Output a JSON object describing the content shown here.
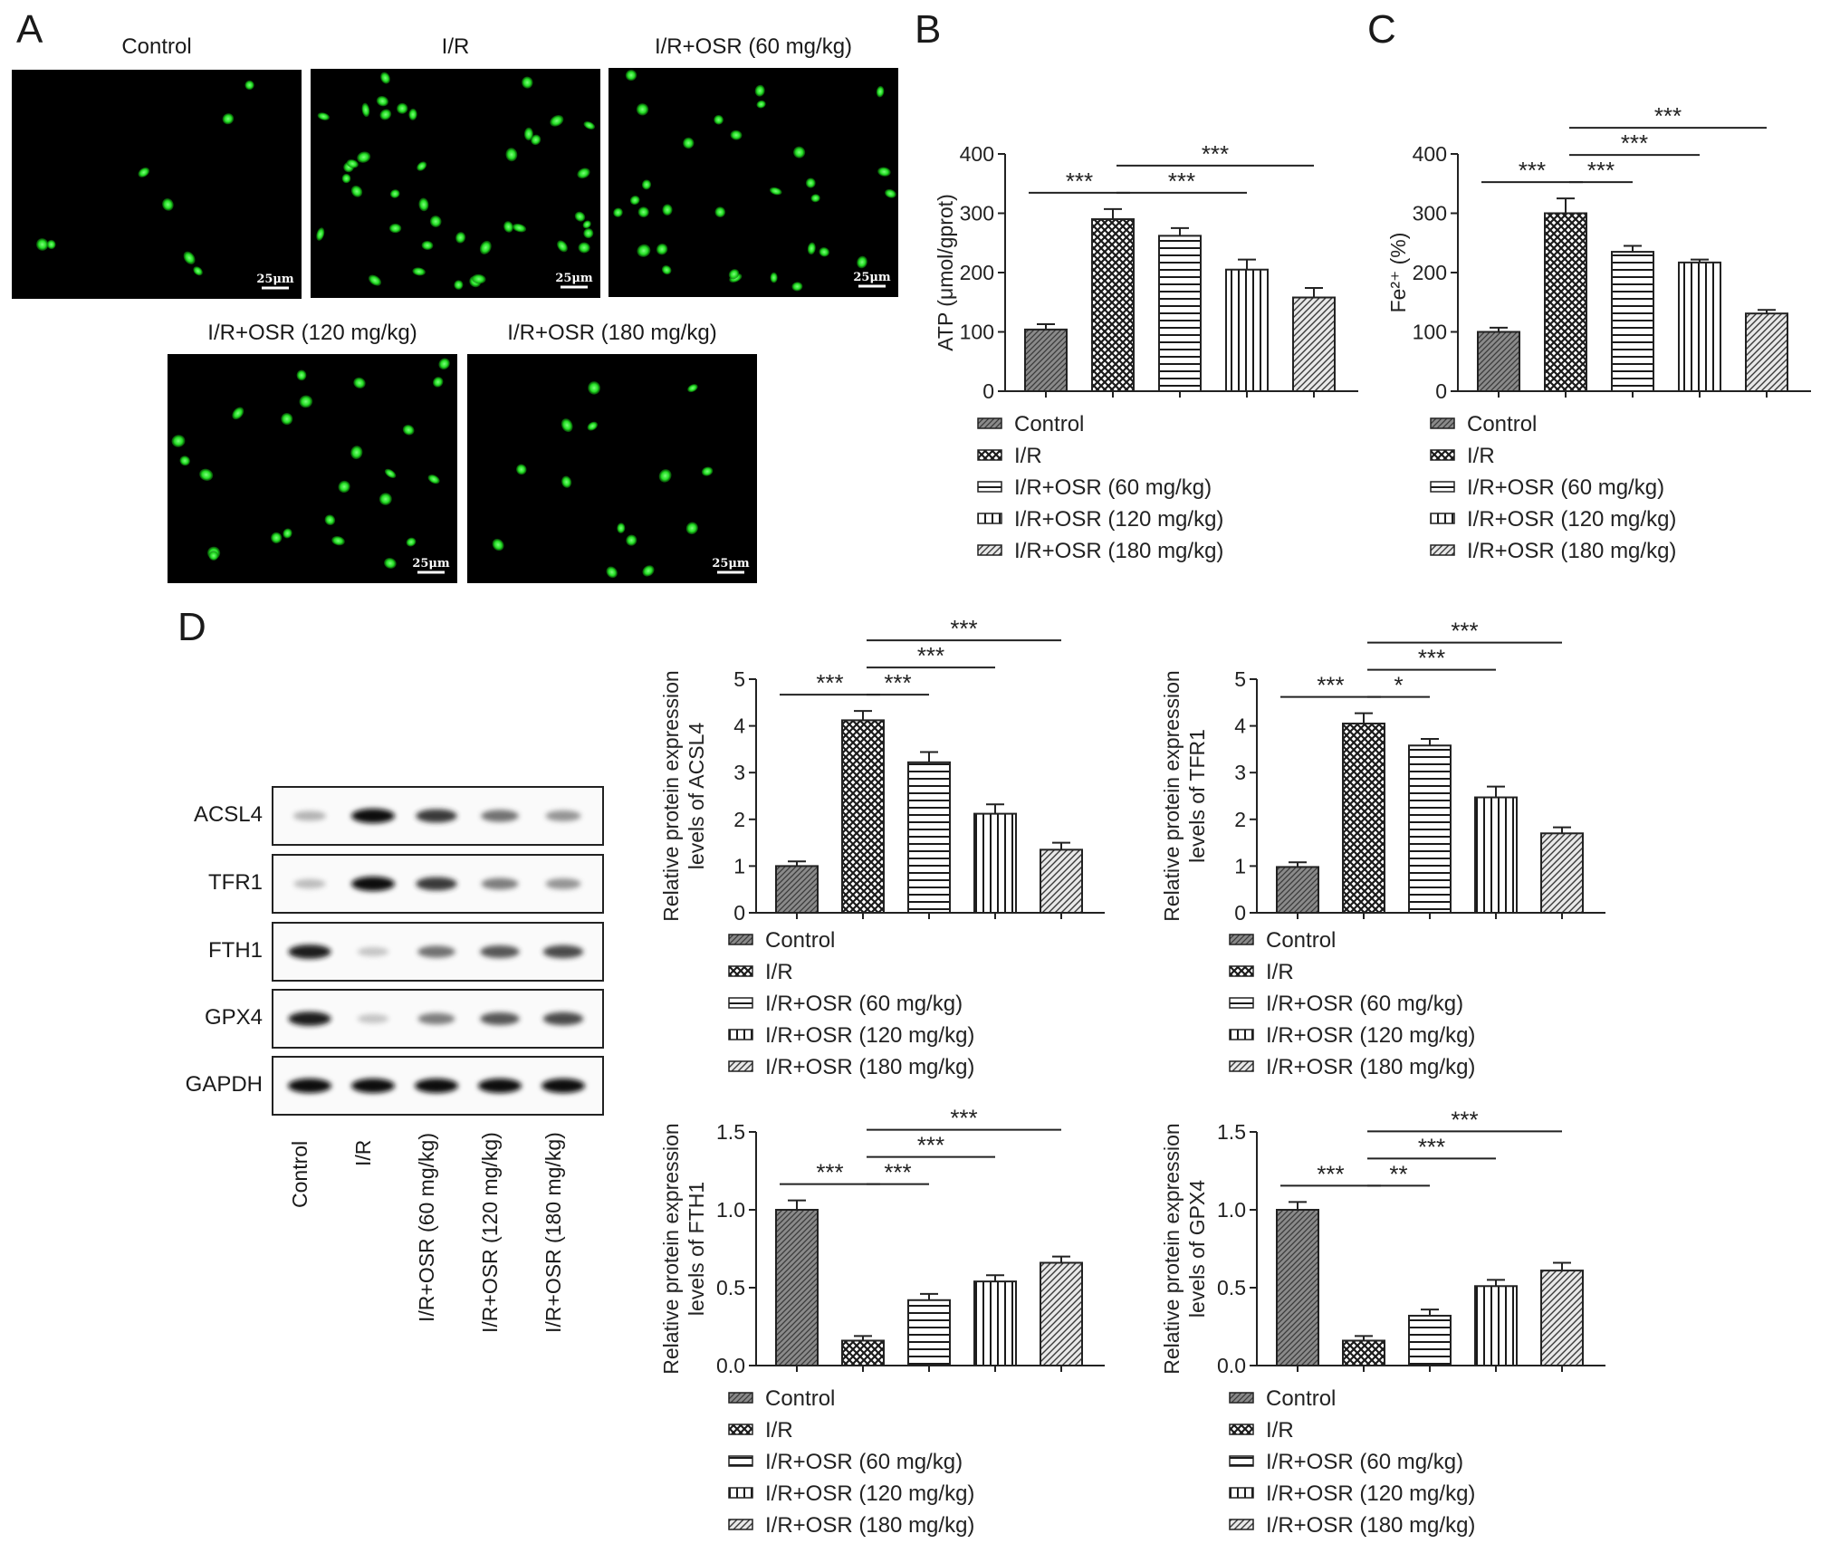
{
  "panel_labels": [
    "A",
    "B",
    "C",
    "D"
  ],
  "micrographs": [
    {
      "title": "Control",
      "scale_bar": "25μm",
      "cells": 8
    },
    {
      "title": "I/R",
      "scale_bar": "25μm",
      "cells": 40
    },
    {
      "title": "I/R+OSR (60 mg/kg)",
      "scale_bar": "25μm",
      "cells": 30
    },
    {
      "title": "I/R+OSR (120 mg/kg)",
      "scale_bar": "25μm",
      "cells": 24
    },
    {
      "title": "I/R+OSR (180 mg/kg)",
      "scale_bar": "25μm",
      "cells": 14
    }
  ],
  "western_blot": {
    "proteins": [
      "ACSL4",
      "TFR1",
      "FTH1",
      "GPX4",
      "GAPDH"
    ],
    "lanes": [
      "Control",
      "I/R",
      "I/R+OSR (60 mg/kg)",
      "I/R+OSR (120 mg/kg)",
      "I/R+OSR (180 mg/kg)"
    ],
    "band_intensity": [
      [
        0.35,
        1.0,
        0.85,
        0.65,
        0.5
      ],
      [
        0.3,
        1.0,
        0.85,
        0.6,
        0.5
      ],
      [
        0.95,
        0.25,
        0.65,
        0.75,
        0.8
      ],
      [
        0.95,
        0.25,
        0.6,
        0.75,
        0.8
      ],
      [
        1.0,
        1.0,
        1.0,
        1.0,
        1.0
      ]
    ]
  },
  "legend_labels": [
    "Control",
    "I/R",
    "I/R+OSR (60 mg/kg)",
    "I/R+OSR (120 mg/kg)",
    "I/R+OSR (180 mg/kg)"
  ],
  "chart_data": [
    {
      "id": "B",
      "type": "bar",
      "categories": [
        "Control",
        "I/R",
        "I/R+OSR (60 mg/kg)",
        "I/R+OSR (120 mg/kg)",
        "I/R+OSR (180 mg/kg)"
      ],
      "values": [
        104,
        290,
        262,
        205,
        158
      ],
      "errors": [
        9,
        17,
        13,
        17,
        16
      ],
      "ylabel": "ATP (μmol/gprot)",
      "ylim": [
        0,
        400
      ],
      "yticks": [
        "0",
        "100",
        "200",
        "300",
        "400"
      ],
      "significance": [
        {
          "from": 0,
          "to": 1,
          "label": "***"
        },
        {
          "from": 1,
          "to": 3,
          "label": "***"
        },
        {
          "from": 1,
          "to": 4,
          "label": "***"
        }
      ]
    },
    {
      "id": "C",
      "type": "bar",
      "categories": [
        "Control",
        "I/R",
        "I/R+OSR (60 mg/kg)",
        "I/R+OSR (120 mg/kg)",
        "I/R+OSR (180 mg/kg)"
      ],
      "values": [
        100,
        300,
        235,
        217,
        131
      ],
      "errors": [
        7,
        25,
        10,
        5,
        6
      ],
      "ylabel": "Fe²⁺ (%)",
      "ylim": [
        0,
        400
      ],
      "yticks": [
        "0",
        "100",
        "200",
        "300",
        "400"
      ],
      "significance": [
        {
          "from": 0,
          "to": 1,
          "label": "***"
        },
        {
          "from": 1,
          "to": 2,
          "label": "***"
        },
        {
          "from": 1,
          "to": 3,
          "label": "***"
        },
        {
          "from": 1,
          "to": 4,
          "label": "***"
        }
      ]
    },
    {
      "id": "D-ACSL4",
      "type": "bar",
      "categories": [
        "Control",
        "I/R",
        "I/R+OSR (60 mg/kg)",
        "I/R+OSR (120 mg/kg)",
        "I/R+OSR (180 mg/kg)"
      ],
      "values": [
        1.0,
        4.12,
        3.22,
        2.12,
        1.35
      ],
      "errors": [
        0.1,
        0.2,
        0.22,
        0.2,
        0.15
      ],
      "ylabel": [
        "Relative protein expression",
        "levels of ACSL4"
      ],
      "ylim": [
        0,
        5
      ],
      "yticks": [
        "0",
        "1",
        "2",
        "3",
        "4",
        "5"
      ],
      "significance": [
        {
          "from": 0,
          "to": 1,
          "label": "***"
        },
        {
          "from": 1,
          "to": 2,
          "label": "***"
        },
        {
          "from": 1,
          "to": 3,
          "label": "***"
        },
        {
          "from": 1,
          "to": 4,
          "label": "***"
        }
      ]
    },
    {
      "id": "D-TFR1",
      "type": "bar",
      "categories": [
        "Control",
        "I/R",
        "I/R+OSR (60 mg/kg)",
        "I/R+OSR (120 mg/kg)",
        "I/R+OSR (180 mg/kg)"
      ],
      "values": [
        0.98,
        4.05,
        3.58,
        2.47,
        1.7
      ],
      "errors": [
        0.1,
        0.22,
        0.14,
        0.23,
        0.13
      ],
      "ylabel": [
        "Relative protein expression",
        "levels of TFR1"
      ],
      "ylim": [
        0,
        5
      ],
      "yticks": [
        "0",
        "1",
        "2",
        "3",
        "4",
        "5"
      ],
      "significance": [
        {
          "from": 0,
          "to": 1,
          "label": "***"
        },
        {
          "from": 1,
          "to": 2,
          "label": "*"
        },
        {
          "from": 1,
          "to": 3,
          "label": "***"
        },
        {
          "from": 1,
          "to": 4,
          "label": "***"
        }
      ]
    },
    {
      "id": "D-FTH1",
      "type": "bar",
      "categories": [
        "Control",
        "I/R",
        "I/R+OSR (60 mg/kg)",
        "I/R+OSR (120 mg/kg)",
        "I/R+OSR (180 mg/kg)"
      ],
      "values": [
        1.0,
        0.16,
        0.42,
        0.54,
        0.66
      ],
      "errors": [
        0.06,
        0.03,
        0.04,
        0.04,
        0.04
      ],
      "ylabel": [
        "Relative protein expression",
        "levels of FTH1"
      ],
      "ylim": [
        0,
        1.5
      ],
      "yticks": [
        "0.0",
        "0.5",
        "1.0",
        "1.5"
      ],
      "significance": [
        {
          "from": 0,
          "to": 1,
          "label": "***"
        },
        {
          "from": 1,
          "to": 2,
          "label": "***"
        },
        {
          "from": 1,
          "to": 3,
          "label": "***"
        },
        {
          "from": 1,
          "to": 4,
          "label": "***"
        }
      ]
    },
    {
      "id": "D-GPX4",
      "type": "bar",
      "categories": [
        "Control",
        "I/R",
        "I/R+OSR (60 mg/kg)",
        "I/R+OSR (120 mg/kg)",
        "I/R+OSR (180 mg/kg)"
      ],
      "values": [
        1.0,
        0.16,
        0.32,
        0.51,
        0.61
      ],
      "errors": [
        0.05,
        0.03,
        0.04,
        0.04,
        0.05
      ],
      "ylabel": [
        "Relative protein expression",
        "levels of GPX4"
      ],
      "ylim": [
        0,
        1.5
      ],
      "yticks": [
        "0.0",
        "0.5",
        "1.0",
        "1.5"
      ],
      "significance": [
        {
          "from": 0,
          "to": 1,
          "label": "***"
        },
        {
          "from": 1,
          "to": 2,
          "label": "**"
        },
        {
          "from": 1,
          "to": 3,
          "label": "***"
        },
        {
          "from": 1,
          "to": 4,
          "label": "***"
        }
      ]
    }
  ]
}
